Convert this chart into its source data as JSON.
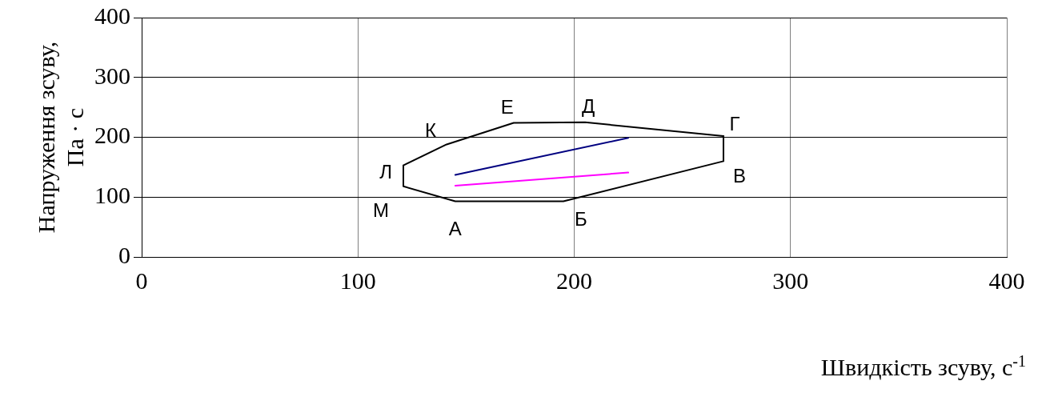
{
  "chart_data": {
    "type": "line",
    "xlabel": "Швидкість зсуву, с$^{-1}$",
    "ylabel": "Напруження зсуву,\nПа · с",
    "xlim": [
      0,
      400
    ],
    "xticks": [
      0,
      100,
      200,
      300,
      400
    ],
    "ylim": [
      0,
      400
    ],
    "yticks": [
      0,
      100,
      200,
      300,
      400
    ],
    "grid": true,
    "legend": false,
    "marker": "none",
    "line_style": "solid",
    "series": [
      {
        "color": "#000000",
        "x": [
          121,
          121,
          145,
          195,
          269,
          269
        ],
        "values": [
          153,
          118,
          93,
          93,
          160,
          202
        ]
      },
      {
        "color": "#000000",
        "x": [
          121,
          141,
          172,
          205,
          269
        ],
        "values": [
          153,
          188,
          224,
          225,
          202
        ]
      },
      {
        "color": "#000080",
        "x": [
          145,
          225
        ],
        "values": [
          137,
          199
        ]
      },
      {
        "color": "#ff00ff",
        "x": [
          145,
          225
        ],
        "values": [
          119,
          141
        ]
      }
    ],
    "annotations": [
      {
        "text": "А",
        "x": 145,
        "y": 93
      },
      {
        "text": "Б",
        "x": 195,
        "y": 93
      },
      {
        "text": "В",
        "x": 269,
        "y": 160
      },
      {
        "text": "Г",
        "x": 269,
        "y": 202
      },
      {
        "text": "Д",
        "x": 205,
        "y": 225
      },
      {
        "text": "Е",
        "x": 172,
        "y": 224
      },
      {
        "text": "К",
        "x": 141,
        "y": 188
      },
      {
        "text": "Л",
        "x": 121,
        "y": 153
      },
      {
        "text": "М",
        "x": 121,
        "y": 118
      }
    ]
  }
}
